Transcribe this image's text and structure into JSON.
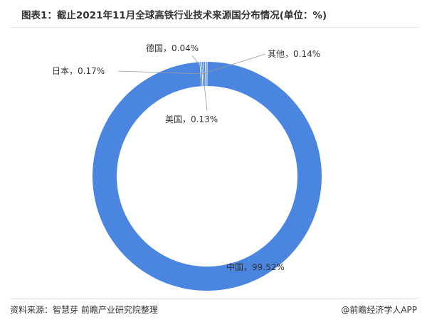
{
  "chart_data": {
    "type": "pie",
    "title": "图表1：截止2021年11月全球高铁行业技术来源国分布情况(单位：%)",
    "categories": [
      "中国",
      "其他",
      "美国",
      "日本",
      "德国"
    ],
    "values": [
      99.52,
      0.14,
      0.13,
      0.17,
      0.04
    ],
    "data_labels": [
      "中国，99.52%",
      "其他，0.14%",
      "美国，0.13%",
      "日本，0.17%",
      "德国，0.04%"
    ],
    "colors": [
      "#4a86e0",
      "#4a86e0",
      "#4a86e0",
      "#4a86e0",
      "#4a86e0"
    ],
    "donut": true,
    "legend": "none"
  },
  "footer": {
    "source": "资料来源：智慧芽 前瞻产业研究院整理",
    "brand": "@前瞻经济学人APP"
  }
}
